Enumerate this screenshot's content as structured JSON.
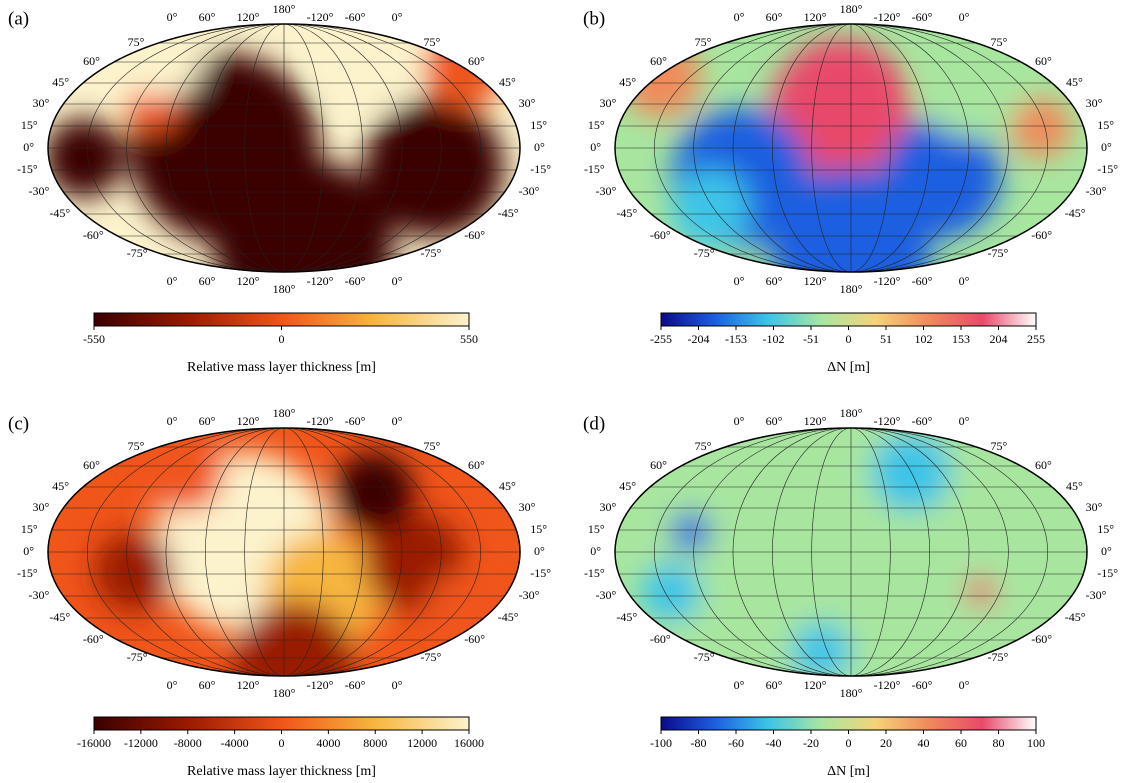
{
  "lon_labels": [
    "0°",
    "60°",
    "120°",
    "180°",
    "-120°",
    "-60°",
    "0°"
  ],
  "lat_labels": [
    "75°",
    "60°",
    "45°",
    "30°",
    "15°",
    "0°",
    "-15°",
    "-30°",
    "-45°",
    "-60°",
    "-75°"
  ],
  "panels": [
    {
      "label": "(a)",
      "colorbar": {
        "ticks": [
          -550,
          0,
          550
        ],
        "label": "Relative mass layer thickness [m]",
        "colormap": [
          "#3a0000",
          "#9a1a00",
          "#f0551a",
          "#f7b640",
          "#fcf3cc"
        ]
      }
    },
    {
      "label": "(b)",
      "colorbar": {
        "ticks": [
          -255,
          -204,
          -153,
          -102,
          -51,
          0,
          51,
          102,
          153,
          204,
          255
        ],
        "label": "ΔN [m]",
        "colormap": [
          "#0a0a8a",
          "#1c5ee0",
          "#3cc4e8",
          "#a8e6a0",
          "#f5d37a",
          "#f08a5a",
          "#e84a6a",
          "#ffffff"
        ]
      }
    },
    {
      "label": "(c)",
      "colorbar": {
        "ticks": [
          -16000,
          -12000,
          -8000,
          -4000,
          0,
          4000,
          8000,
          12000,
          16000
        ],
        "label": "Relative mass layer thickness [m]",
        "colormap": [
          "#3a0000",
          "#9a1a00",
          "#f0551a",
          "#f7b640",
          "#fcf3cc"
        ]
      }
    },
    {
      "label": "(d)",
      "colorbar": {
        "ticks": [
          -100,
          -80,
          -60,
          -40,
          -20,
          0,
          20,
          40,
          60,
          80,
          100
        ],
        "label": "ΔN [m]",
        "colormap": [
          "#0a0a8a",
          "#1c5ee0",
          "#3cc4e8",
          "#a8e6a0",
          "#f5d37a",
          "#f08a5a",
          "#e84a6a",
          "#ffffff"
        ]
      }
    }
  ]
}
